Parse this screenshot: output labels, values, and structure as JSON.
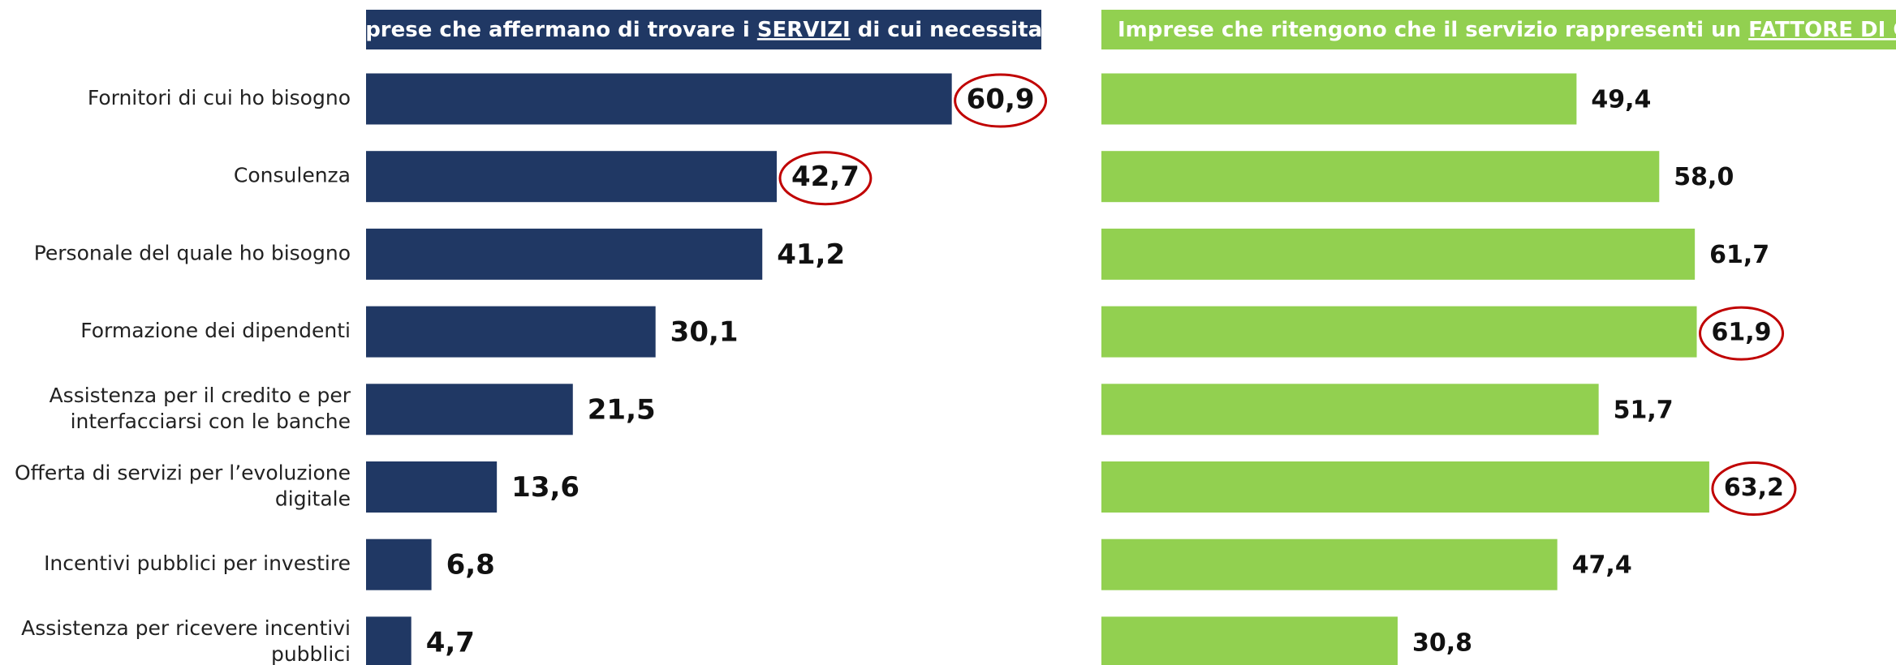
{
  "categories": [
    "Fornitori di cui ho bisogno",
    "Consulenza",
    "Personale del quale ho bisogno",
    "Formazione dei dipendenti",
    "Assistenza per il credito e per\ninterfacciarsi con le banche",
    "Offerta di servizi per l’evoluzione\ndigitale",
    "Incentivi pubblici per investire",
    "Assistenza per ricevere incentivi\npubblici"
  ],
  "chart_data": [
    {
      "type": "bar",
      "orientation": "horizontal",
      "title_parts": [
        {
          "text": "Imprese che affermano di trovare i ",
          "underline": false
        },
        {
          "text": "SERVIZI",
          "underline": true
        },
        {
          "text": " di cui necessitano",
          "underline": false
        }
      ],
      "values": [
        60.9,
        42.7,
        41.2,
        30.1,
        21.5,
        13.6,
        6.8,
        4.7
      ],
      "value_labels": [
        "60,9",
        "42,7",
        "41,2",
        "30,1",
        "21,5",
        "13,6",
        "6,8",
        "4,7"
      ],
      "color": "#203864",
      "highlight": [
        0,
        1
      ],
      "highlight_color": "#c00000",
      "xlim": [
        0,
        70
      ]
    },
    {
      "type": "bar",
      "orientation": "horizontal",
      "title_parts": [
        {
          "text": "Imprese che ritengono che il servizio rappresenti un ",
          "underline": false
        },
        {
          "text": "FATTORE DI CRESCITA",
          "underline": true
        }
      ],
      "values": [
        49.4,
        58.0,
        61.7,
        61.9,
        51.7,
        63.2,
        47.4,
        30.8
      ],
      "value_labels": [
        "49,4",
        "58,0",
        "61,7",
        "61,9",
        "51,7",
        "63,2",
        "47,4",
        "30,8"
      ],
      "color": "#92d050",
      "highlight": [
        3,
        5
      ],
      "highlight_color": "#c00000",
      "xlim": [
        0,
        70
      ]
    }
  ]
}
